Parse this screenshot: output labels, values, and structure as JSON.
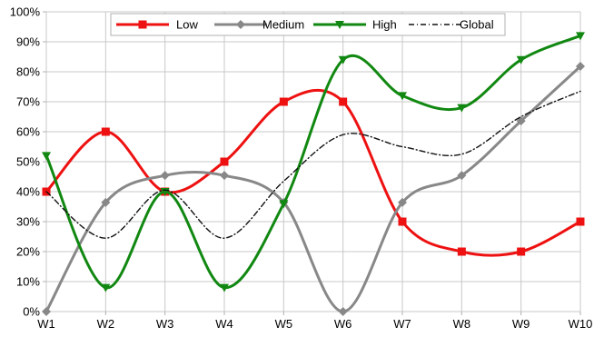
{
  "chart_data": {
    "type": "line",
    "categories": [
      "W1",
      "W2",
      "W3",
      "W4",
      "W5",
      "W6",
      "W7",
      "W8",
      "W9",
      "W10"
    ],
    "yticks": [
      "0%",
      "10%",
      "20%",
      "30%",
      "40%",
      "50%",
      "60%",
      "70%",
      "80%",
      "90%",
      "100%"
    ],
    "ylim": [
      0,
      100
    ],
    "grid": true,
    "legend_position": "top",
    "series": [
      {
        "name": "Low",
        "color": "#ee1111",
        "marker": "square",
        "dash": "",
        "values": [
          40,
          60,
          40,
          50,
          70,
          70,
          30,
          20,
          20,
          30
        ]
      },
      {
        "name": "Medium",
        "color": "#888888",
        "marker": "diamond",
        "dash": "",
        "values": [
          0,
          36.4,
          45.4,
          45.4,
          36.4,
          0,
          36.4,
          45.4,
          63.6,
          81.8
        ]
      },
      {
        "name": "High",
        "color": "#118811",
        "marker": "triangle",
        "dash": "",
        "values": [
          52,
          8,
          40,
          8,
          36,
          84,
          72,
          68,
          84,
          92
        ]
      },
      {
        "name": "Global",
        "color": "#111111",
        "marker": "none",
        "dash": "6,3,1,3",
        "values": [
          40,
          24.5,
          40.5,
          24.5,
          43.5,
          59,
          55,
          52.5,
          65,
          73.5
        ]
      }
    ]
  }
}
